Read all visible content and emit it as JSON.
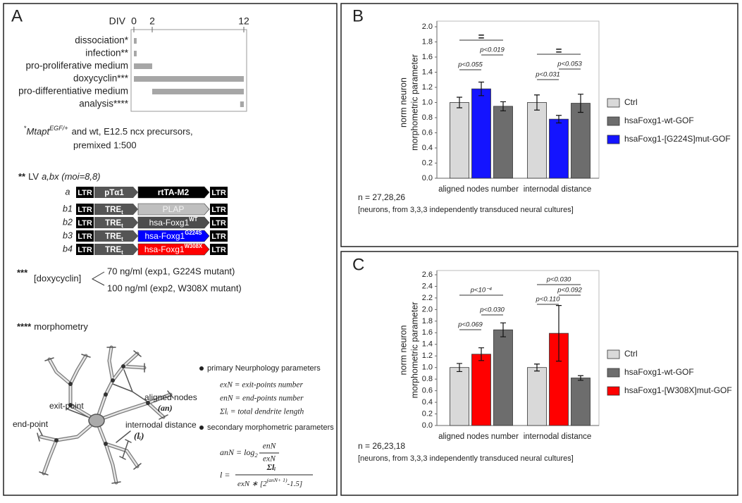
{
  "panel_labels": [
    "A",
    "B",
    "C"
  ],
  "chart_data": [
    {
      "type": "timeline",
      "axis_label": "DIV",
      "categories": [
        "dissociation*",
        "infection**",
        "pro-proliferative medium",
        "doxycyclin***",
        "pro-differentiative medium",
        "analysis****"
      ],
      "starts": [
        0,
        0,
        0,
        0,
        2,
        11.6
      ],
      "ends": [
        0.3,
        0.3,
        2,
        12,
        12,
        12
      ],
      "color": "#a6a6a6",
      "xlim": [
        0,
        12
      ],
      "xticks": [
        0,
        2,
        12
      ]
    },
    {
      "type": "bar",
      "y_label": [
        "norm neuron",
        "morphometric parameter"
      ],
      "categories": [
        "aligned nodes number",
        "internodal distance"
      ],
      "series": [
        {
          "name": "Ctrl",
          "color": "#d9d9d9",
          "values": [
            1.0,
            1.0
          ],
          "errors": [
            0.07,
            0.1
          ]
        },
        {
          "name": "hsaFoxg1-wt-GOF",
          "color": "#6d6d6d",
          "values": [
            0.95,
            0.99
          ],
          "errors": [
            0.06,
            0.12
          ]
        },
        {
          "name": "hsaFoxg1-[G224S]mut-GOF",
          "color": "#1414ff",
          "values": [
            1.18,
            0.78
          ],
          "errors": [
            0.09,
            0.05
          ]
        }
      ],
      "ylim": [
        0,
        2
      ],
      "yticks": [
        {
          "value": 0,
          "label": "0.0"
        },
        {
          "value": 0.2,
          "label": "0.2"
        },
        {
          "value": 0.4,
          "label": "0.4"
        },
        {
          "value": 0.6,
          "label": "0.6"
        },
        {
          "value": 0.8,
          "label": "0.8"
        },
        {
          "value": 1,
          "label": "1.0"
        },
        {
          "value": 1.2,
          "label": "1.2"
        },
        {
          "value": 1.4,
          "label": "1.4"
        },
        {
          "value": 1.6,
          "label": "1.6"
        },
        {
          "value": 1.8,
          "label": "1.8"
        },
        {
          "value": 2,
          "label": "2.0"
        }
      ],
      "annotations": [
        "=",
        "=",
        "p<0.019",
        "p<0.055",
        "p<0.031",
        "p<0.053"
      ],
      "n": "n = 27,28,26",
      "note": "[neurons, from 3,3,3 independently transduced neural cultures]"
    },
    {
      "type": "bar",
      "y_label": [
        "norm neuron",
        "morphometric parameter"
      ],
      "categories": [
        "aligned nodes number",
        "internodal distance"
      ],
      "series": [
        {
          "name": "Ctrl",
          "color": "#d9d9d9",
          "values": [
            1.0,
            1.0
          ],
          "errors": [
            0.07,
            0.06
          ]
        },
        {
          "name": "hsaFoxg1-wt-GOF",
          "color": "#6d6d6d",
          "values": [
            1.65,
            0.82
          ],
          "errors": [
            0.12,
            0.04
          ]
        },
        {
          "name": "hsaFoxg1-[W308X]mut-GOF",
          "color": "#ff0000",
          "values": [
            1.23,
            1.59
          ],
          "errors": [
            0.11,
            0.48
          ]
        }
      ],
      "ylim": [
        0,
        2.6
      ],
      "yticks": [
        {
          "value": 0,
          "label": "0.0"
        },
        {
          "value": 0.2,
          "label": "0.2"
        },
        {
          "value": 0.4,
          "label": "0.4"
        },
        {
          "value": 0.6,
          "label": "0.6"
        },
        {
          "value": 0.8,
          "label": "0.8"
        },
        {
          "value": 1,
          "label": "1.0"
        },
        {
          "value": 1.2,
          "label": "1.2"
        },
        {
          "value": 1.4,
          "label": "1.4"
        },
        {
          "value": 1.6,
          "label": "1.6"
        },
        {
          "value": 1.8,
          "label": "1.8"
        },
        {
          "value": 2,
          "label": "2.0"
        },
        {
          "value": 2.2,
          "label": "2.2"
        },
        {
          "value": 2.4,
          "label": "2.4"
        },
        {
          "value": 2.6,
          "label": "2.6"
        }
      ],
      "annotations": [
        "p<10⁻⁴",
        "p<0.030",
        "p<0.069",
        "p<0.030",
        "p<0.092",
        "p<0.110"
      ],
      "n": "n = 26,23,18",
      "note": "[neurons, from 3,3,3 independently transduced neural cultures]"
    }
  ],
  "panel_a": {
    "footnote": {
      "stars": "*",
      "gene": "Mtapt",
      "sup": "EGF/+",
      "rest": "and wt, E12.5 ncx precursors,",
      "line2": "premixed 1:500"
    },
    "vectors": {
      "stars": "**",
      "lv": "LV",
      "args": "a,bx (moi=8,8)",
      "rows": [
        {
          "label": "a",
          "ltr_left": "LTR",
          "promoter": "pTα1",
          "promoter_sub": "",
          "gene": "rtTA-M2",
          "gene_sup": "",
          "gene_color": "#000000",
          "gene_text_color": "#ffffff",
          "ltr_right": "LTR"
        },
        {
          "label": "b1",
          "ltr_left": "LTR",
          "promoter": "TRE",
          "promoter_sub": "t",
          "gene": "PLAP",
          "gene_sup": "",
          "gene_color": "#bfbfbf",
          "gene_text_color": "#f2f2f2",
          "ltr_right": "LTR"
        },
        {
          "label": "b2",
          "ltr_left": "LTR",
          "promoter": "TRE",
          "promoter_sub": "t",
          "gene": "hsa-Foxg1",
          "gene_sup": "WT",
          "gene_color": "#4d4d4d",
          "gene_text_color": "#ffffff",
          "ltr_right": "LTR"
        },
        {
          "label": "b3",
          "ltr_left": "LTR",
          "promoter": "TRE",
          "promoter_sub": "t",
          "gene": "hsa-Foxg1",
          "gene_sup": "G224S",
          "gene_color": "#0000ff",
          "gene_text_color": "#ffffff",
          "ltr_right": "LTR"
        },
        {
          "label": "b4",
          "ltr_left": "LTR",
          "promoter": "TRE",
          "promoter_sub": "t",
          "gene": "hsa-Foxg1",
          "gene_sup": "W308X",
          "gene_color": "#ff0000",
          "gene_text_color": "#ffffff",
          "ltr_right": "LTR"
        }
      ]
    },
    "doxycyclin": {
      "stars": "***",
      "label": "[doxycyclin]",
      "options": [
        "70 ng/ml (exp1, G224S mutant)",
        "100 ng/ml (exp2, W308X mutant)"
      ]
    },
    "morphometry": {
      "stars": "****",
      "label": "morphometry"
    },
    "neuron_labels": {
      "aligned_nodes": "aligned nodes",
      "an": "(an)",
      "exit_point": "exit-point",
      "end_point": "end-point",
      "internodal": "internodal distance",
      "li": "(lᵢ)"
    },
    "parameters": {
      "primary": "primary Neurphology parameters",
      "primary_items": [
        "exN = exit-points number",
        "enN = end-points number",
        "Σlᵢ = total dendrite length"
      ],
      "secondary": "secondary morphometric parameters",
      "formula_an": {
        "lhs": "anN = log",
        "base": "2",
        "num": "enN",
        "den": "exN"
      },
      "formula_l": {
        "lhs": "l =",
        "num": "Σlᵢ",
        "den": "exN ∗ [2",
        "den_sup": "(anN+ 1)",
        "den_end": "-1.5]"
      }
    }
  }
}
